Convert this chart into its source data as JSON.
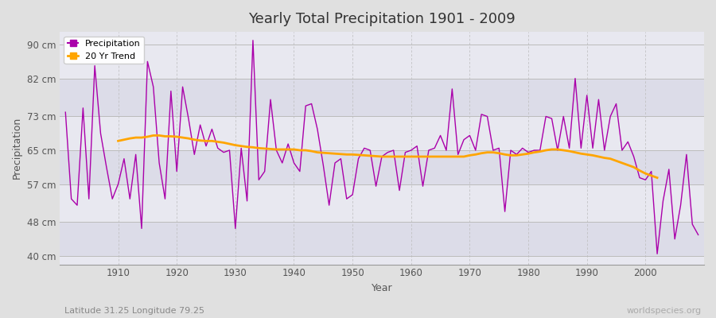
{
  "title": "Yearly Total Precipitation 1901 - 2009",
  "xlabel": "Year",
  "ylabel": "Precipitation",
  "subtitle": "Latitude 31.25 Longitude 79.25",
  "watermark": "worldspecies.org",
  "years": [
    1901,
    1902,
    1903,
    1904,
    1905,
    1906,
    1907,
    1908,
    1909,
    1910,
    1911,
    1912,
    1913,
    1914,
    1915,
    1916,
    1917,
    1918,
    1919,
    1920,
    1921,
    1922,
    1923,
    1924,
    1925,
    1926,
    1927,
    1928,
    1929,
    1930,
    1931,
    1932,
    1933,
    1934,
    1935,
    1936,
    1937,
    1938,
    1939,
    1940,
    1941,
    1942,
    1943,
    1944,
    1945,
    1946,
    1947,
    1948,
    1949,
    1950,
    1951,
    1952,
    1953,
    1954,
    1955,
    1956,
    1957,
    1958,
    1959,
    1960,
    1961,
    1962,
    1963,
    1964,
    1965,
    1966,
    1967,
    1968,
    1969,
    1970,
    1971,
    1972,
    1973,
    1974,
    1975,
    1976,
    1977,
    1978,
    1979,
    1980,
    1981,
    1982,
    1983,
    1984,
    1985,
    1986,
    1987,
    1988,
    1989,
    1990,
    1991,
    1992,
    1993,
    1994,
    1995,
    1996,
    1997,
    1998,
    1999,
    2000,
    2001,
    2002,
    2003,
    2004,
    2005,
    2006,
    2007,
    2008,
    2009
  ],
  "precipitation": [
    74.0,
    53.5,
    52.0,
    75.0,
    53.5,
    85.0,
    69.0,
    61.0,
    53.5,
    57.0,
    63.0,
    53.5,
    64.0,
    46.5,
    86.0,
    80.0,
    62.0,
    53.5,
    79.0,
    60.0,
    80.0,
    72.5,
    64.0,
    71.0,
    66.0,
    70.0,
    65.5,
    64.5,
    65.0,
    46.5,
    65.5,
    53.0,
    91.0,
    58.0,
    60.0,
    77.0,
    65.0,
    62.0,
    66.5,
    62.0,
    60.0,
    75.5,
    76.0,
    70.0,
    61.5,
    52.0,
    62.0,
    63.0,
    53.5,
    54.5,
    63.0,
    65.5,
    65.0,
    56.5,
    63.5,
    64.5,
    65.0,
    55.5,
    64.5,
    65.0,
    66.0,
    56.5,
    65.0,
    65.5,
    68.5,
    65.0,
    79.5,
    64.0,
    67.5,
    68.5,
    65.0,
    73.5,
    73.0,
    65.0,
    65.5,
    50.5,
    65.0,
    64.0,
    65.5,
    64.5,
    65.0,
    65.0,
    73.0,
    72.5,
    65.0,
    73.0,
    65.5,
    82.0,
    65.5,
    78.0,
    65.5,
    77.0,
    65.0,
    73.0,
    76.0,
    65.0,
    67.0,
    63.5,
    58.5,
    58.0,
    60.0,
    40.5,
    53.0,
    60.5,
    44.0,
    52.0,
    64.0,
    47.5,
    45.0
  ],
  "trend": [
    null,
    null,
    null,
    null,
    null,
    null,
    null,
    null,
    null,
    67.2,
    67.5,
    67.8,
    68.0,
    68.0,
    68.2,
    68.5,
    68.5,
    68.3,
    68.3,
    68.2,
    68.0,
    67.8,
    67.5,
    67.3,
    67.2,
    67.2,
    67.0,
    66.8,
    66.5,
    66.2,
    66.0,
    65.8,
    65.7,
    65.5,
    65.4,
    65.3,
    65.2,
    65.2,
    65.2,
    65.2,
    65.0,
    65.0,
    64.8,
    64.5,
    64.4,
    64.3,
    64.2,
    64.1,
    64.0,
    64.0,
    63.9,
    63.8,
    63.7,
    63.6,
    63.5,
    63.5,
    63.5,
    63.5,
    63.5,
    63.5,
    63.5,
    63.5,
    63.5,
    63.5,
    63.5,
    63.5,
    63.5,
    63.5,
    63.5,
    63.8,
    64.0,
    64.3,
    64.5,
    64.5,
    64.3,
    64.0,
    63.8,
    63.8,
    64.0,
    64.2,
    64.5,
    64.7,
    65.0,
    65.2,
    65.2,
    65.0,
    64.8,
    64.5,
    64.2,
    64.0,
    63.8,
    63.5,
    63.2,
    63.0,
    62.5,
    62.0,
    61.5,
    61.0,
    60.2,
    59.5,
    59.0,
    58.5,
    null,
    null,
    null,
    null,
    null
  ],
  "precip_color": "#aa00aa",
  "trend_color": "#FFA500",
  "bg_color": "#e0e0e0",
  "plot_bg_color": "#e8e8ee",
  "grid_h_color": "#cccccc",
  "grid_v_color": "#cccccc",
  "band_colors": [
    "#dcdce8",
    "#e8e8f0"
  ],
  "yticks": [
    40,
    48,
    57,
    65,
    73,
    82,
    90
  ],
  "ytick_labels": [
    "40 cm",
    "48 cm",
    "57 cm",
    "65 cm",
    "73 cm",
    "82 cm",
    "90 cm"
  ],
  "xticks": [
    1910,
    1920,
    1930,
    1940,
    1950,
    1960,
    1970,
    1980,
    1990,
    2000
  ],
  "ylim": [
    38,
    93
  ],
  "xlim": [
    1900,
    2010
  ]
}
